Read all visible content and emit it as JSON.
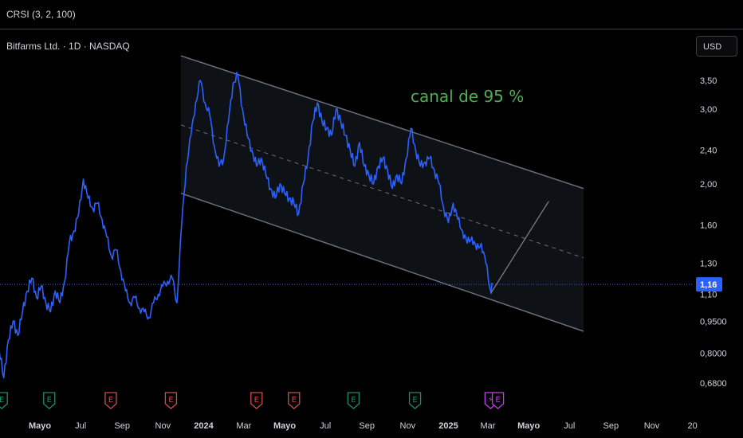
{
  "header": {
    "indicator": "CRSI (3, 2, 100)",
    "symbol": "Bitfarms Ltd. · 1D · NASDAQ",
    "currency": "USD"
  },
  "colors": {
    "price_line": "#2962ff",
    "channel": "#5d606b",
    "annotation": "#4caf50",
    "last_price_bg": "#2962ff",
    "earnings_green": "#1f8a70",
    "earnings_red": "#d14b4b",
    "event_purple": "#c13ee6"
  },
  "chart_data": {
    "type": "line",
    "scale": "log",
    "y_ticks": [
      "3,50",
      "3,00",
      "2,40",
      "2,00",
      "1,60",
      "1,30",
      "1,10",
      "0,9500",
      "0,8000",
      "0,6800"
    ],
    "x_ticks": [
      "Mayo",
      "Jul",
      "Sep",
      "Nov",
      "2024",
      "Mar",
      "Mayo",
      "Jul",
      "Sep",
      "Nov",
      "2025",
      "Mar",
      "Mayo",
      "Jul",
      "Sep",
      "Nov",
      "20"
    ],
    "last_price": "1,16",
    "annotation": "canal de 95 %",
    "series": [
      {
        "points": [
          [
            "2023-03-01",
            0.82
          ],
          [
            "2023-03-08",
            0.7
          ],
          [
            "2023-03-15",
            0.86
          ],
          [
            "2023-03-22",
            0.95
          ],
          [
            "2023-03-29",
            0.88
          ],
          [
            "2023-04-05",
            1.0
          ],
          [
            "2023-04-12",
            1.12
          ],
          [
            "2023-04-19",
            1.2
          ],
          [
            "2023-04-26",
            1.08
          ],
          [
            "2023-05-03",
            1.15
          ],
          [
            "2023-05-10",
            1.05
          ],
          [
            "2023-05-17",
            1.0
          ],
          [
            "2023-05-24",
            1.12
          ],
          [
            "2023-05-31",
            1.05
          ],
          [
            "2023-06-07",
            1.18
          ],
          [
            "2023-06-14",
            1.45
          ],
          [
            "2023-06-21",
            1.55
          ],
          [
            "2023-06-28",
            1.7
          ],
          [
            "2023-07-05",
            2.05
          ],
          [
            "2023-07-12",
            1.85
          ],
          [
            "2023-07-19",
            1.75
          ],
          [
            "2023-07-26",
            1.8
          ],
          [
            "2023-08-02",
            1.65
          ],
          [
            "2023-08-09",
            1.5
          ],
          [
            "2023-08-16",
            1.35
          ],
          [
            "2023-08-23",
            1.4
          ],
          [
            "2023-08-30",
            1.25
          ],
          [
            "2023-09-06",
            1.12
          ],
          [
            "2023-09-13",
            1.05
          ],
          [
            "2023-09-20",
            1.08
          ],
          [
            "2023-09-27",
            1.02
          ],
          [
            "2023-10-04",
            1.0
          ],
          [
            "2023-10-11",
            0.97
          ],
          [
            "2023-10-18",
            1.05
          ],
          [
            "2023-10-25",
            1.1
          ],
          [
            "2023-11-01",
            1.15
          ],
          [
            "2023-11-08",
            1.18
          ],
          [
            "2023-11-15",
            1.2
          ],
          [
            "2023-11-22",
            1.05
          ],
          [
            "2023-11-29",
            1.6
          ],
          [
            "2023-12-06",
            2.2
          ],
          [
            "2023-12-13",
            2.6
          ],
          [
            "2023-12-20",
            3.1
          ],
          [
            "2023-12-27",
            3.5
          ],
          [
            "2024-01-03",
            3.1
          ],
          [
            "2024-01-10",
            2.9
          ],
          [
            "2024-01-17",
            2.45
          ],
          [
            "2024-01-24",
            2.2
          ],
          [
            "2024-01-31",
            2.3
          ],
          [
            "2024-02-07",
            2.8
          ],
          [
            "2024-02-14",
            3.45
          ],
          [
            "2024-02-21",
            3.6
          ],
          [
            "2024-02-28",
            3.0
          ],
          [
            "2024-03-06",
            2.6
          ],
          [
            "2024-03-13",
            2.4
          ],
          [
            "2024-03-20",
            2.2
          ],
          [
            "2024-03-27",
            2.3
          ],
          [
            "2024-04-03",
            2.1
          ],
          [
            "2024-04-10",
            1.95
          ],
          [
            "2024-04-17",
            1.85
          ],
          [
            "2024-04-24",
            2.0
          ],
          [
            "2024-05-01",
            1.9
          ],
          [
            "2024-05-08",
            1.85
          ],
          [
            "2024-05-15",
            1.8
          ],
          [
            "2024-05-22",
            1.7
          ],
          [
            "2024-05-29",
            2.0
          ],
          [
            "2024-06-05",
            2.3
          ],
          [
            "2024-06-12",
            2.8
          ],
          [
            "2024-06-19",
            3.1
          ],
          [
            "2024-06-26",
            2.8
          ],
          [
            "2024-07-03",
            2.7
          ],
          [
            "2024-07-10",
            2.6
          ],
          [
            "2024-07-17",
            3.0
          ],
          [
            "2024-07-24",
            2.8
          ],
          [
            "2024-07-31",
            2.6
          ],
          [
            "2024-08-07",
            2.4
          ],
          [
            "2024-08-14",
            2.2
          ],
          [
            "2024-08-21",
            2.5
          ],
          [
            "2024-08-28",
            2.2
          ],
          [
            "2024-09-04",
            2.1
          ],
          [
            "2024-09-11",
            2.0
          ],
          [
            "2024-09-18",
            2.2
          ],
          [
            "2024-09-25",
            2.3
          ],
          [
            "2024-10-02",
            2.15
          ],
          [
            "2024-10-09",
            1.95
          ],
          [
            "2024-10-16",
            2.1
          ],
          [
            "2024-10-23",
            2.0
          ],
          [
            "2024-10-30",
            2.3
          ],
          [
            "2024-11-06",
            2.7
          ],
          [
            "2024-11-13",
            2.4
          ],
          [
            "2024-11-20",
            2.2
          ],
          [
            "2024-11-27",
            2.25
          ],
          [
            "2024-12-04",
            2.3
          ],
          [
            "2024-12-11",
            2.15
          ],
          [
            "2024-12-18",
            2.0
          ],
          [
            "2024-12-25",
            1.75
          ],
          [
            "2025-01-01",
            1.62
          ],
          [
            "2025-01-08",
            1.8
          ],
          [
            "2025-01-15",
            1.65
          ],
          [
            "2025-01-22",
            1.55
          ],
          [
            "2025-01-29",
            1.45
          ],
          [
            "2025-02-05",
            1.5
          ],
          [
            "2025-02-12",
            1.4
          ],
          [
            "2025-02-19",
            1.45
          ],
          [
            "2025-02-26",
            1.3
          ],
          [
            "2025-03-05",
            1.12
          ],
          [
            "2025-03-08",
            1.16
          ]
        ]
      }
    ],
    "channel": {
      "upper": [
        [
          "2023-11-28",
          4.0
        ],
        [
          "2025-07-22",
          1.95
        ]
      ],
      "middle": [
        [
          "2023-11-28",
          2.75
        ],
        [
          "2025-07-22",
          1.34
        ]
      ],
      "lower": [
        [
          "2023-11-28",
          1.9
        ],
        [
          "2025-07-22",
          0.9
        ]
      ]
    },
    "projection": [
      [
        "2025-03-06",
        1.11
      ],
      [
        "2025-05-31",
        1.82
      ]
    ],
    "events": [
      {
        "date": "2023-03-05",
        "label": "E",
        "kind": "green"
      },
      {
        "date": "2023-05-15",
        "label": "E",
        "kind": "green"
      },
      {
        "date": "2023-08-15",
        "label": "E",
        "kind": "red"
      },
      {
        "date": "2023-11-13",
        "label": "E",
        "kind": "red"
      },
      {
        "date": "2024-03-20",
        "label": "E",
        "kind": "red"
      },
      {
        "date": "2024-05-15",
        "label": "E",
        "kind": "red"
      },
      {
        "date": "2024-08-12",
        "label": "E",
        "kind": "green"
      },
      {
        "date": "2024-11-12",
        "label": "E",
        "kind": "green"
      },
      {
        "date": "2025-03-05",
        "label": "⚡",
        "kind": "purple"
      },
      {
        "date": "2025-03-16",
        "label": "E",
        "kind": "purple"
      }
    ]
  }
}
